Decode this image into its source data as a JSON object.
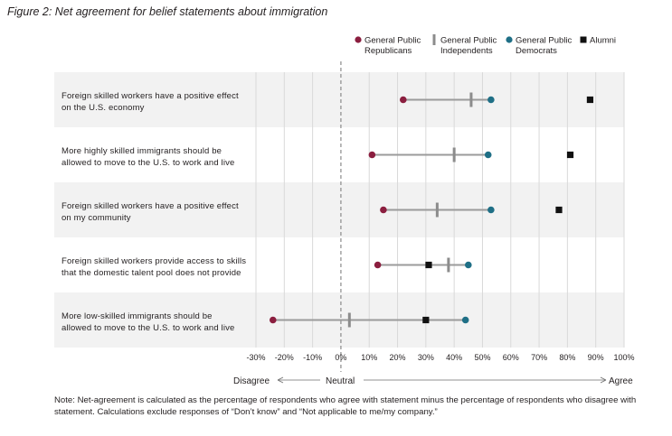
{
  "figure_title": "Figure 2: Net agreement for belief statements about immigration",
  "note": "Note: Net-agreement is calculated as the percentage of respondents who agree with statement minus the percentage of respondents who disagree with statement. Calculations exclude responses of “Don’t know” and “Not applicable to me/my company.”",
  "scale_labels": {
    "left": "Disagree",
    "center": "Neutral",
    "right": "Agree"
  },
  "colors": {
    "republicans": "#8b1e3f",
    "independents": "#8c8c8c",
    "democrats": "#1f6f86",
    "alumni": "#111111",
    "band": "#f2f2f2",
    "grid": "#d9d9d9",
    "connector": "#9b9b9b"
  },
  "chart_data": {
    "type": "dot-range",
    "xlim": [
      -30,
      100
    ],
    "x_ticks": [
      -30,
      -20,
      -10,
      0,
      10,
      20,
      30,
      40,
      50,
      60,
      70,
      80,
      90,
      100
    ],
    "x_tick_labels": [
      "-30%",
      "-20%",
      "-10%",
      "0%",
      "10%",
      "20%",
      "30%",
      "40%",
      "50%",
      "60%",
      "70%",
      "80%",
      "90%",
      "100%"
    ],
    "legend": [
      {
        "key": "republicans",
        "lines": [
          "General Public",
          "Republicans"
        ],
        "marker": "circle"
      },
      {
        "key": "independents",
        "lines": [
          "General Public",
          "Independents"
        ],
        "marker": "bar"
      },
      {
        "key": "democrats",
        "lines": [
          "General Public",
          "Democrats"
        ],
        "marker": "circle"
      },
      {
        "key": "alumni",
        "lines": [
          "Alumni"
        ],
        "marker": "square"
      }
    ],
    "rows": [
      {
        "lines": [
          "Foreign skilled workers have a positive effect",
          "on the U.S. economy"
        ],
        "republicans": 22,
        "independents": 46,
        "democrats": 53,
        "alumni": 88
      },
      {
        "lines": [
          "More highly skilled immigrants should be",
          "allowed to move to the U.S. to work and live"
        ],
        "republicans": 11,
        "independents": 40,
        "democrats": 52,
        "alumni": 81
      },
      {
        "lines": [
          "Foreign skilled workers have a positive effect",
          "on my community"
        ],
        "republicans": 15,
        "independents": 34,
        "democrats": 53,
        "alumni": 77
      },
      {
        "lines": [
          "Foreign skilled workers provide access to skills",
          "that the domestic talent pool does not provide"
        ],
        "republicans": 13,
        "independents": 38,
        "democrats": 45,
        "alumni": 31
      },
      {
        "lines": [
          "More low-skilled immigrants should be",
          "allowed to move to the U.S. to work and live"
        ],
        "republicans": -24,
        "independents": 3,
        "democrats": 44,
        "alumni": 30
      }
    ]
  }
}
